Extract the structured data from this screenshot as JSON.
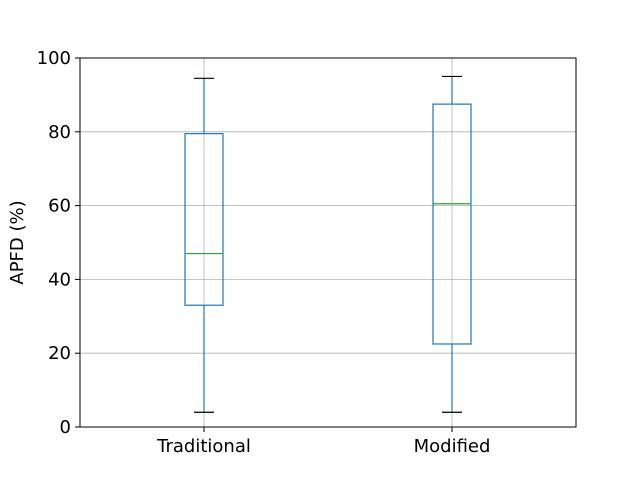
{
  "chart_data": {
    "type": "box",
    "title": "",
    "xlabel": "",
    "ylabel": "APFD (%)",
    "ylim": [
      0,
      100
    ],
    "yticks": [
      0,
      20,
      40,
      60,
      80,
      100
    ],
    "grid": true,
    "categories": [
      "Traditional",
      "Modified"
    ],
    "boxes": [
      {
        "category": "Traditional",
        "whisker_low": 4,
        "q1": 33,
        "median": 47,
        "q3": 79.5,
        "whisker_high": 94.5
      },
      {
        "category": "Modified",
        "whisker_low": 4,
        "q1": 22.5,
        "median": 60.5,
        "q3": 87.5,
        "whisker_high": 95
      }
    ],
    "colors": {
      "box": "#1f77b4",
      "median": "#2ca02c",
      "cap": "#000000",
      "grid": "#b0b0b0",
      "axes": "#000000"
    }
  }
}
